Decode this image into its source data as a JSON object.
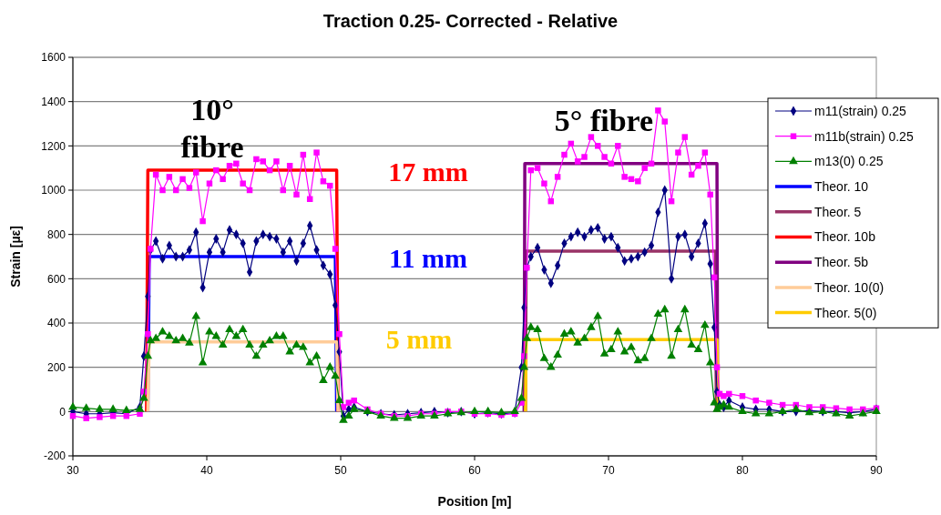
{
  "chart_data": {
    "type": "line",
    "title": "Traction 0.25- Corrected - Relative",
    "xlabel": "Position [m]",
    "ylabel": "Strain [µε]",
    "xlim": [
      30,
      90
    ],
    "xticks": [
      30,
      40,
      50,
      60,
      70,
      80,
      90
    ],
    "ylim": [
      -200,
      1600
    ],
    "yticks": [
      -200,
      0,
      200,
      400,
      600,
      800,
      1000,
      1200,
      1400,
      1600
    ],
    "grid": "y",
    "legend": "right",
    "annotations": [
      "10° fibre",
      "5° fibre",
      "17 mm",
      "11 mm",
      "5 mm"
    ],
    "series": [
      {
        "name": "Theor. 10",
        "color": "#0000ff",
        "marker": "none",
        "x": [
          35.6,
          35.7,
          49.6,
          49.7
        ],
        "values": [
          0,
          700,
          700,
          0
        ]
      },
      {
        "name": "Theor. 5",
        "color": "#993366",
        "marker": "none",
        "x": [
          63.8,
          63.85,
          78.0,
          78.05
        ],
        "values": [
          0,
          725,
          725,
          0
        ]
      },
      {
        "name": "Theor. 10b",
        "color": "#ff0000",
        "marker": "none",
        "x": [
          35.5,
          35.6,
          49.7,
          49.8
        ],
        "values": [
          0,
          1090,
          1090,
          0
        ]
      },
      {
        "name": "Theor. 5b",
        "color": "#800080",
        "marker": "none",
        "x": [
          63.7,
          63.75,
          78.1,
          78.15
        ],
        "values": [
          0,
          1120,
          1120,
          0
        ]
      },
      {
        "name": "Theor. 10(0)",
        "color": "#ffcc99",
        "marker": "none",
        "x": [
          35.6,
          35.7,
          49.7,
          49.8
        ],
        "values": [
          0,
          315,
          315,
          0
        ]
      },
      {
        "name": "Theor. 5(0)",
        "color": "#ffcc00",
        "marker": "none",
        "x": [
          63.8,
          63.85,
          78.1,
          78.2
        ],
        "values": [
          0,
          325,
          325,
          0
        ]
      },
      {
        "name": "m11(strain) 0.25",
        "color": "#000080",
        "marker": "diamond",
        "x": [
          30,
          31,
          32,
          33,
          34,
          35,
          35.3,
          35.6,
          35.8,
          36.2,
          36.7,
          37.2,
          37.7,
          38.2,
          38.7,
          39.2,
          39.7,
          40.2,
          40.7,
          41.2,
          41.7,
          42.2,
          42.7,
          43.2,
          43.7,
          44.2,
          44.7,
          45.2,
          45.7,
          46.2,
          46.7,
          47.2,
          47.7,
          48.2,
          48.7,
          49.2,
          49.6,
          49.9,
          50.2,
          50.6,
          51,
          52,
          53,
          54,
          55,
          56,
          57,
          58,
          59,
          60,
          61,
          62,
          63,
          63.5,
          63.7,
          63.9,
          64.2,
          64.7,
          65.2,
          65.7,
          66.2,
          66.7,
          67.2,
          67.7,
          68.2,
          68.7,
          69.2,
          69.7,
          70.2,
          70.7,
          71.2,
          71.7,
          72.2,
          72.7,
          73.2,
          73.7,
          74.2,
          74.7,
          75.2,
          75.7,
          76.2,
          76.7,
          77.2,
          77.6,
          77.9,
          78.1,
          78.3,
          78.6,
          79,
          80,
          81,
          82,
          83,
          84,
          85,
          86,
          87,
          88,
          89,
          90
        ],
        "values": [
          0,
          -10,
          -10,
          -5,
          -10,
          20,
          250,
          520,
          730,
          770,
          690,
          750,
          700,
          700,
          730,
          810,
          560,
          720,
          780,
          720,
          820,
          800,
          760,
          630,
          770,
          800,
          790,
          780,
          720,
          770,
          680,
          760,
          840,
          730,
          660,
          620,
          480,
          270,
          -20,
          10,
          20,
          0,
          -10,
          -15,
          -10,
          -5,
          0,
          -5,
          0,
          -10,
          -5,
          -10,
          -5,
          200,
          470,
          650,
          700,
          740,
          640,
          580,
          660,
          760,
          790,
          810,
          790,
          820,
          830,
          780,
          790,
          740,
          680,
          690,
          700,
          720,
          750,
          900,
          1000,
          600,
          790,
          800,
          700,
          760,
          850,
          667,
          380,
          90,
          30,
          20,
          50,
          20,
          10,
          10,
          0,
          0,
          5,
          0,
          0,
          -5,
          0,
          10
        ]
      },
      {
        "name": "m11b(strain) 0.25",
        "color": "#ff00ff",
        "marker": "square",
        "x": [
          30,
          31,
          32,
          33,
          34,
          35,
          35.3,
          35.6,
          35.8,
          36.2,
          36.7,
          37.2,
          37.7,
          38.2,
          38.7,
          39.2,
          39.7,
          40.2,
          40.7,
          41.2,
          41.7,
          42.2,
          42.7,
          43.2,
          43.7,
          44.2,
          44.7,
          45.2,
          45.7,
          46.2,
          46.7,
          47.2,
          47.7,
          48.2,
          48.7,
          49.2,
          49.6,
          49.9,
          50.2,
          50.6,
          51,
          52,
          53,
          54,
          55,
          56,
          57,
          58,
          59,
          60,
          61,
          62,
          63,
          63.5,
          63.7,
          63.9,
          64.2,
          64.7,
          65.2,
          65.7,
          66.2,
          66.7,
          67.2,
          67.7,
          68.2,
          68.7,
          69.2,
          69.7,
          70.2,
          70.7,
          71.2,
          71.7,
          72.2,
          72.7,
          73.2,
          73.7,
          74.2,
          74.7,
          75.2,
          75.7,
          76.2,
          76.7,
          77.2,
          77.6,
          77.9,
          78.1,
          78.3,
          78.6,
          79,
          80,
          81,
          82,
          83,
          84,
          85,
          86,
          87,
          88,
          89,
          90
        ],
        "values": [
          -20,
          -30,
          -25,
          -20,
          -20,
          -10,
          90,
          350,
          735,
          1070,
          1000,
          1060,
          1000,
          1050,
          1010,
          1080,
          860,
          1030,
          1090,
          1050,
          1110,
          1120,
          1030,
          1000,
          1140,
          1130,
          1090,
          1130,
          1000,
          1110,
          980,
          1160,
          960,
          1170,
          1040,
          1020,
          735,
          350,
          20,
          40,
          50,
          10,
          -10,
          -20,
          -20,
          -10,
          -10,
          0,
          0,
          -10,
          -10,
          -15,
          -10,
          40,
          250,
          650,
          1090,
          1100,
          1030,
          950,
          1060,
          1160,
          1210,
          1130,
          1150,
          1240,
          1200,
          1150,
          1120,
          1200,
          1060,
          1050,
          1040,
          1100,
          1120,
          1360,
          1310,
          950,
          1170,
          1240,
          1070,
          1110,
          1170,
          980,
          606,
          200,
          80,
          70,
          80,
          70,
          50,
          40,
          30,
          30,
          20,
          20,
          15,
          10,
          10,
          15
        ]
      },
      {
        "name": "m13(0) 0.25",
        "color": "#008000",
        "marker": "triangle",
        "x": [
          30,
          31,
          32,
          33,
          34,
          35,
          35.3,
          35.6,
          35.8,
          36.2,
          36.7,
          37.2,
          37.7,
          38.2,
          38.7,
          39.2,
          39.7,
          40.2,
          40.7,
          41.2,
          41.7,
          42.2,
          42.7,
          43.2,
          43.7,
          44.2,
          44.7,
          45.2,
          45.7,
          46.2,
          46.7,
          47.2,
          47.7,
          48.2,
          48.7,
          49.2,
          49.6,
          49.9,
          50.2,
          50.6,
          51,
          52,
          53,
          54,
          55,
          56,
          57,
          58,
          59,
          60,
          61,
          62,
          63,
          63.5,
          63.7,
          63.9,
          64.2,
          64.7,
          65.2,
          65.7,
          66.2,
          66.7,
          67.2,
          67.7,
          68.2,
          68.7,
          69.2,
          69.7,
          70.2,
          70.7,
          71.2,
          71.7,
          72.2,
          72.7,
          73.2,
          73.7,
          74.2,
          74.7,
          75.2,
          75.7,
          76.2,
          76.7,
          77.2,
          77.6,
          77.9,
          78.1,
          78.3,
          78.6,
          79,
          80,
          81,
          82,
          83,
          84,
          85,
          86,
          87,
          88,
          89,
          90
        ],
        "values": [
          20,
          15,
          10,
          10,
          5,
          10,
          60,
          250,
          320,
          330,
          360,
          340,
          320,
          330,
          310,
          430,
          220,
          360,
          340,
          300,
          370,
          340,
          370,
          300,
          250,
          300,
          320,
          340,
          340,
          270,
          300,
          290,
          220,
          250,
          140,
          200,
          160,
          50,
          -40,
          -20,
          10,
          0,
          -20,
          -30,
          -30,
          -20,
          -20,
          -10,
          -5,
          0,
          0,
          -5,
          0,
          60,
          200,
          330,
          380,
          370,
          240,
          200,
          255,
          350,
          360,
          310,
          330,
          380,
          430,
          260,
          280,
          360,
          270,
          290,
          230,
          240,
          330,
          440,
          460,
          250,
          370,
          460,
          300,
          280,
          390,
          220,
          40,
          10,
          20,
          30,
          20,
          0,
          -10,
          -10,
          0,
          10,
          -5,
          0,
          -10,
          -20,
          -10,
          0
        ]
      }
    ]
  }
}
